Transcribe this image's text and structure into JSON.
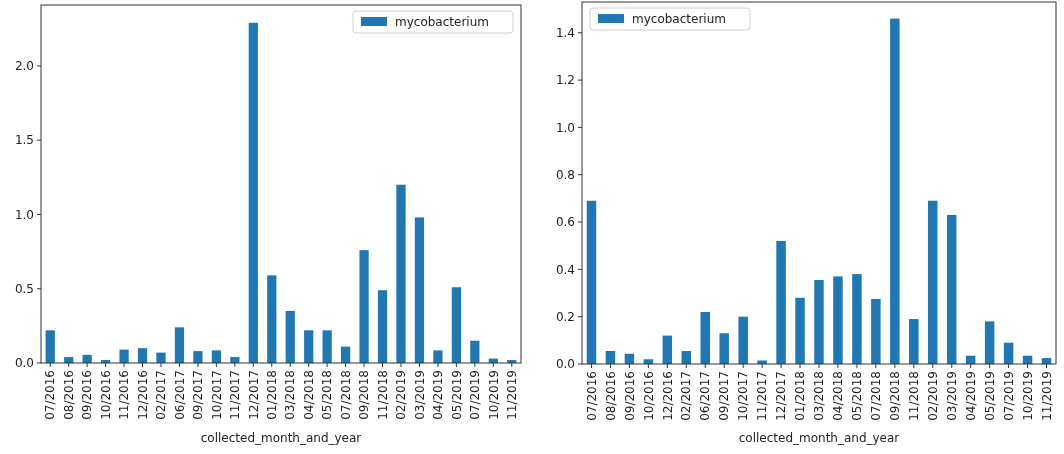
{
  "chart_data": [
    {
      "type": "bar",
      "xlabel": "collected_month_and_year",
      "categories": [
        "07/2016",
        "08/2016",
        "09/2016",
        "10/2016",
        "11/2016",
        "12/2016",
        "02/2017",
        "06/2017",
        "09/2017",
        "10/2017",
        "11/2017",
        "12/2017",
        "01/2018",
        "03/2018",
        "04/2018",
        "05/2018",
        "07/2018",
        "09/2018",
        "11/2018",
        "02/2019",
        "03/2019",
        "04/2019",
        "05/2019",
        "07/2019",
        "10/2019",
        "11/2019"
      ],
      "series": [
        {
          "name": "mycobacterium",
          "color": "#1f77b4",
          "values": [
            0.22,
            0.04,
            0.055,
            0.02,
            0.09,
            0.1,
            0.07,
            0.24,
            0.08,
            0.085,
            0.04,
            2.29,
            0.59,
            0.35,
            0.22,
            0.22,
            0.11,
            0.76,
            0.49,
            1.2,
            0.98,
            0.085,
            0.51,
            0.15,
            0.03,
            0.02
          ]
        }
      ],
      "ylim": [
        0,
        2.41
      ],
      "yticks": [
        {
          "value": 0,
          "label": "0.0"
        },
        {
          "value": 0.5,
          "label": "0.5"
        },
        {
          "value": 1,
          "label": "1.0"
        },
        {
          "value": 1.5,
          "label": "1.5"
        },
        {
          "value": 2,
          "label": "2.0"
        }
      ],
      "legend": "top right"
    },
    {
      "type": "bar",
      "xlabel": "collected_month_and_year",
      "categories": [
        "07/2016",
        "08/2016",
        "09/2016",
        "10/2016",
        "12/2016",
        "02/2017",
        "06/2017",
        "09/2017",
        "10/2017",
        "11/2017",
        "12/2017",
        "01/2018",
        "03/2018",
        "04/2018",
        "05/2018",
        "07/2018",
        "09/2018",
        "11/2018",
        "02/2019",
        "03/2019",
        "04/2019",
        "05/2019",
        "07/2019",
        "10/2019",
        "11/2019"
      ],
      "series": [
        {
          "name": "mycobacterium",
          "color": "#1f77b4",
          "values": [
            0.69,
            0.055,
            0.043,
            0.02,
            0.12,
            0.055,
            0.22,
            0.13,
            0.2,
            0.015,
            0.52,
            0.28,
            0.355,
            0.37,
            0.38,
            0.275,
            1.46,
            0.19,
            0.69,
            0.63,
            0.035,
            0.18,
            0.09,
            0.035,
            0.025
          ]
        }
      ],
      "ylim": [
        0,
        1.53
      ],
      "yticks": [
        {
          "value": 0,
          "label": "0.0"
        },
        {
          "value": 0.2,
          "label": "0.2"
        },
        {
          "value": 0.4,
          "label": "0.4"
        },
        {
          "value": 0.6,
          "label": "0.6"
        },
        {
          "value": 0.8,
          "label": "0.8"
        },
        {
          "value": 1,
          "label": "1.0"
        },
        {
          "value": 1.2,
          "label": "1.2"
        },
        {
          "value": 1.4,
          "label": "1.4"
        }
      ],
      "legend": "top left"
    }
  ]
}
